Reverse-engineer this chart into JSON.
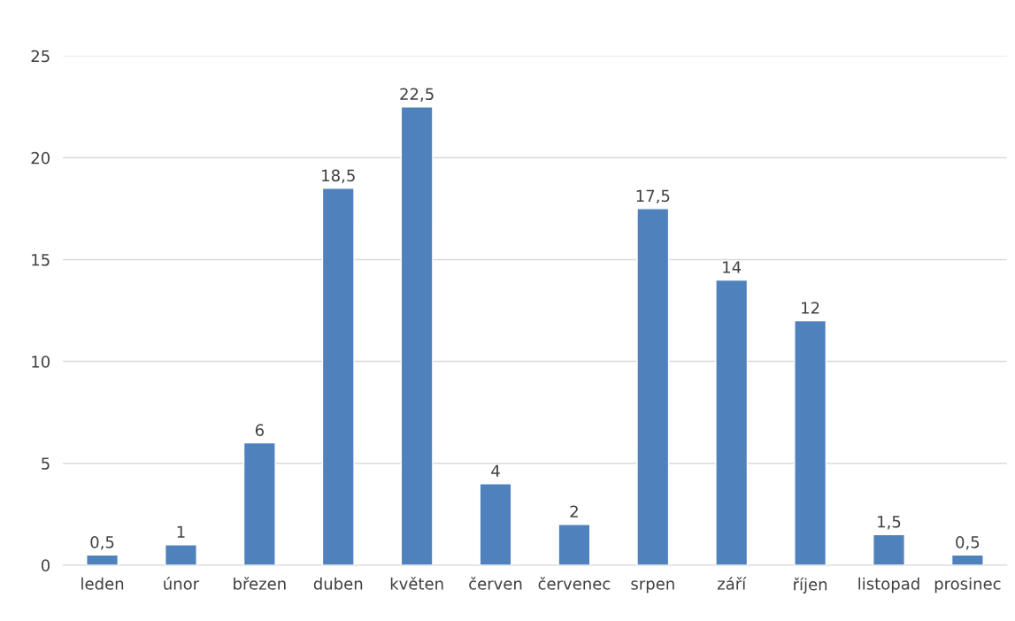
{
  "chart_data": {
    "type": "bar",
    "categories": [
      "leden",
      "únor",
      "březen",
      "duben",
      "květen",
      "červen",
      "červenec",
      "srpen",
      "září",
      "říjen",
      "listopad",
      "prosinec"
    ],
    "values": [
      0.5,
      1,
      6,
      18.5,
      22.5,
      4,
      2,
      17.5,
      14,
      12,
      1.5,
      0.5
    ],
    "value_labels": [
      "0,5",
      "1",
      "6",
      "18,5",
      "22,5",
      "4",
      "2",
      "17,5",
      "14",
      "12",
      "1,5",
      "0,5"
    ],
    "color": "#4f81bd",
    "ylim": [
      0,
      25
    ],
    "yticks": [
      0,
      5,
      10,
      15,
      20,
      25
    ],
    "grid": "y"
  }
}
